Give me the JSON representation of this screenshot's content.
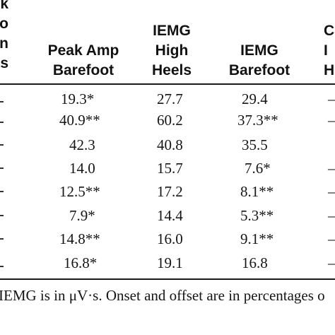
{
  "table": {
    "cut_header_lines": [
      "k",
      "o",
      "n",
      "s"
    ],
    "columns": [
      {
        "lines": [
          "Peak Amp",
          "Barefoot"
        ]
      },
      {
        "lines": [
          "IEMG",
          "High",
          "Heels"
        ]
      },
      {
        "lines": [
          "IEMG",
          "Barefoot"
        ]
      },
      {
        "lines": [
          "C",
          "I",
          "H"
        ]
      }
    ],
    "rows": [
      {
        "peak_amp_barefoot": "19.3*",
        "iemg_high_heels": "27.7",
        "iemg_barefoot": "29.4",
        "cut": "–"
      },
      {
        "peak_amp_barefoot": "40.9**",
        "iemg_high_heels": "60.2",
        "iemg_barefoot": "37.3**",
        "cut": "–"
      },
      {
        "peak_amp_barefoot": "42.3",
        "iemg_high_heels": "40.8",
        "iemg_barefoot": "35.5",
        "cut": ""
      },
      {
        "peak_amp_barefoot": "14.0",
        "iemg_high_heels": "15.7",
        "iemg_barefoot": "7.6*",
        "cut": "–"
      },
      {
        "peak_amp_barefoot": "12.5**",
        "iemg_high_heels": "17.2",
        "iemg_barefoot": "8.1**",
        "cut": "–"
      },
      {
        "peak_amp_barefoot": "7.9*",
        "iemg_high_heels": "14.4",
        "iemg_barefoot": "5.3**",
        "cut": "–"
      },
      {
        "peak_amp_barefoot": "14.8**",
        "iemg_high_heels": "16.0",
        "iemg_barefoot": "9.1**",
        "cut": "–"
      },
      {
        "peak_amp_barefoot": "16.8*",
        "iemg_high_heels": "19.1",
        "iemg_barefoot": "16.8",
        "cut": "–"
      }
    ]
  },
  "footnote": "IEMG is in μV·s. Onset and offset are in percentages o"
}
